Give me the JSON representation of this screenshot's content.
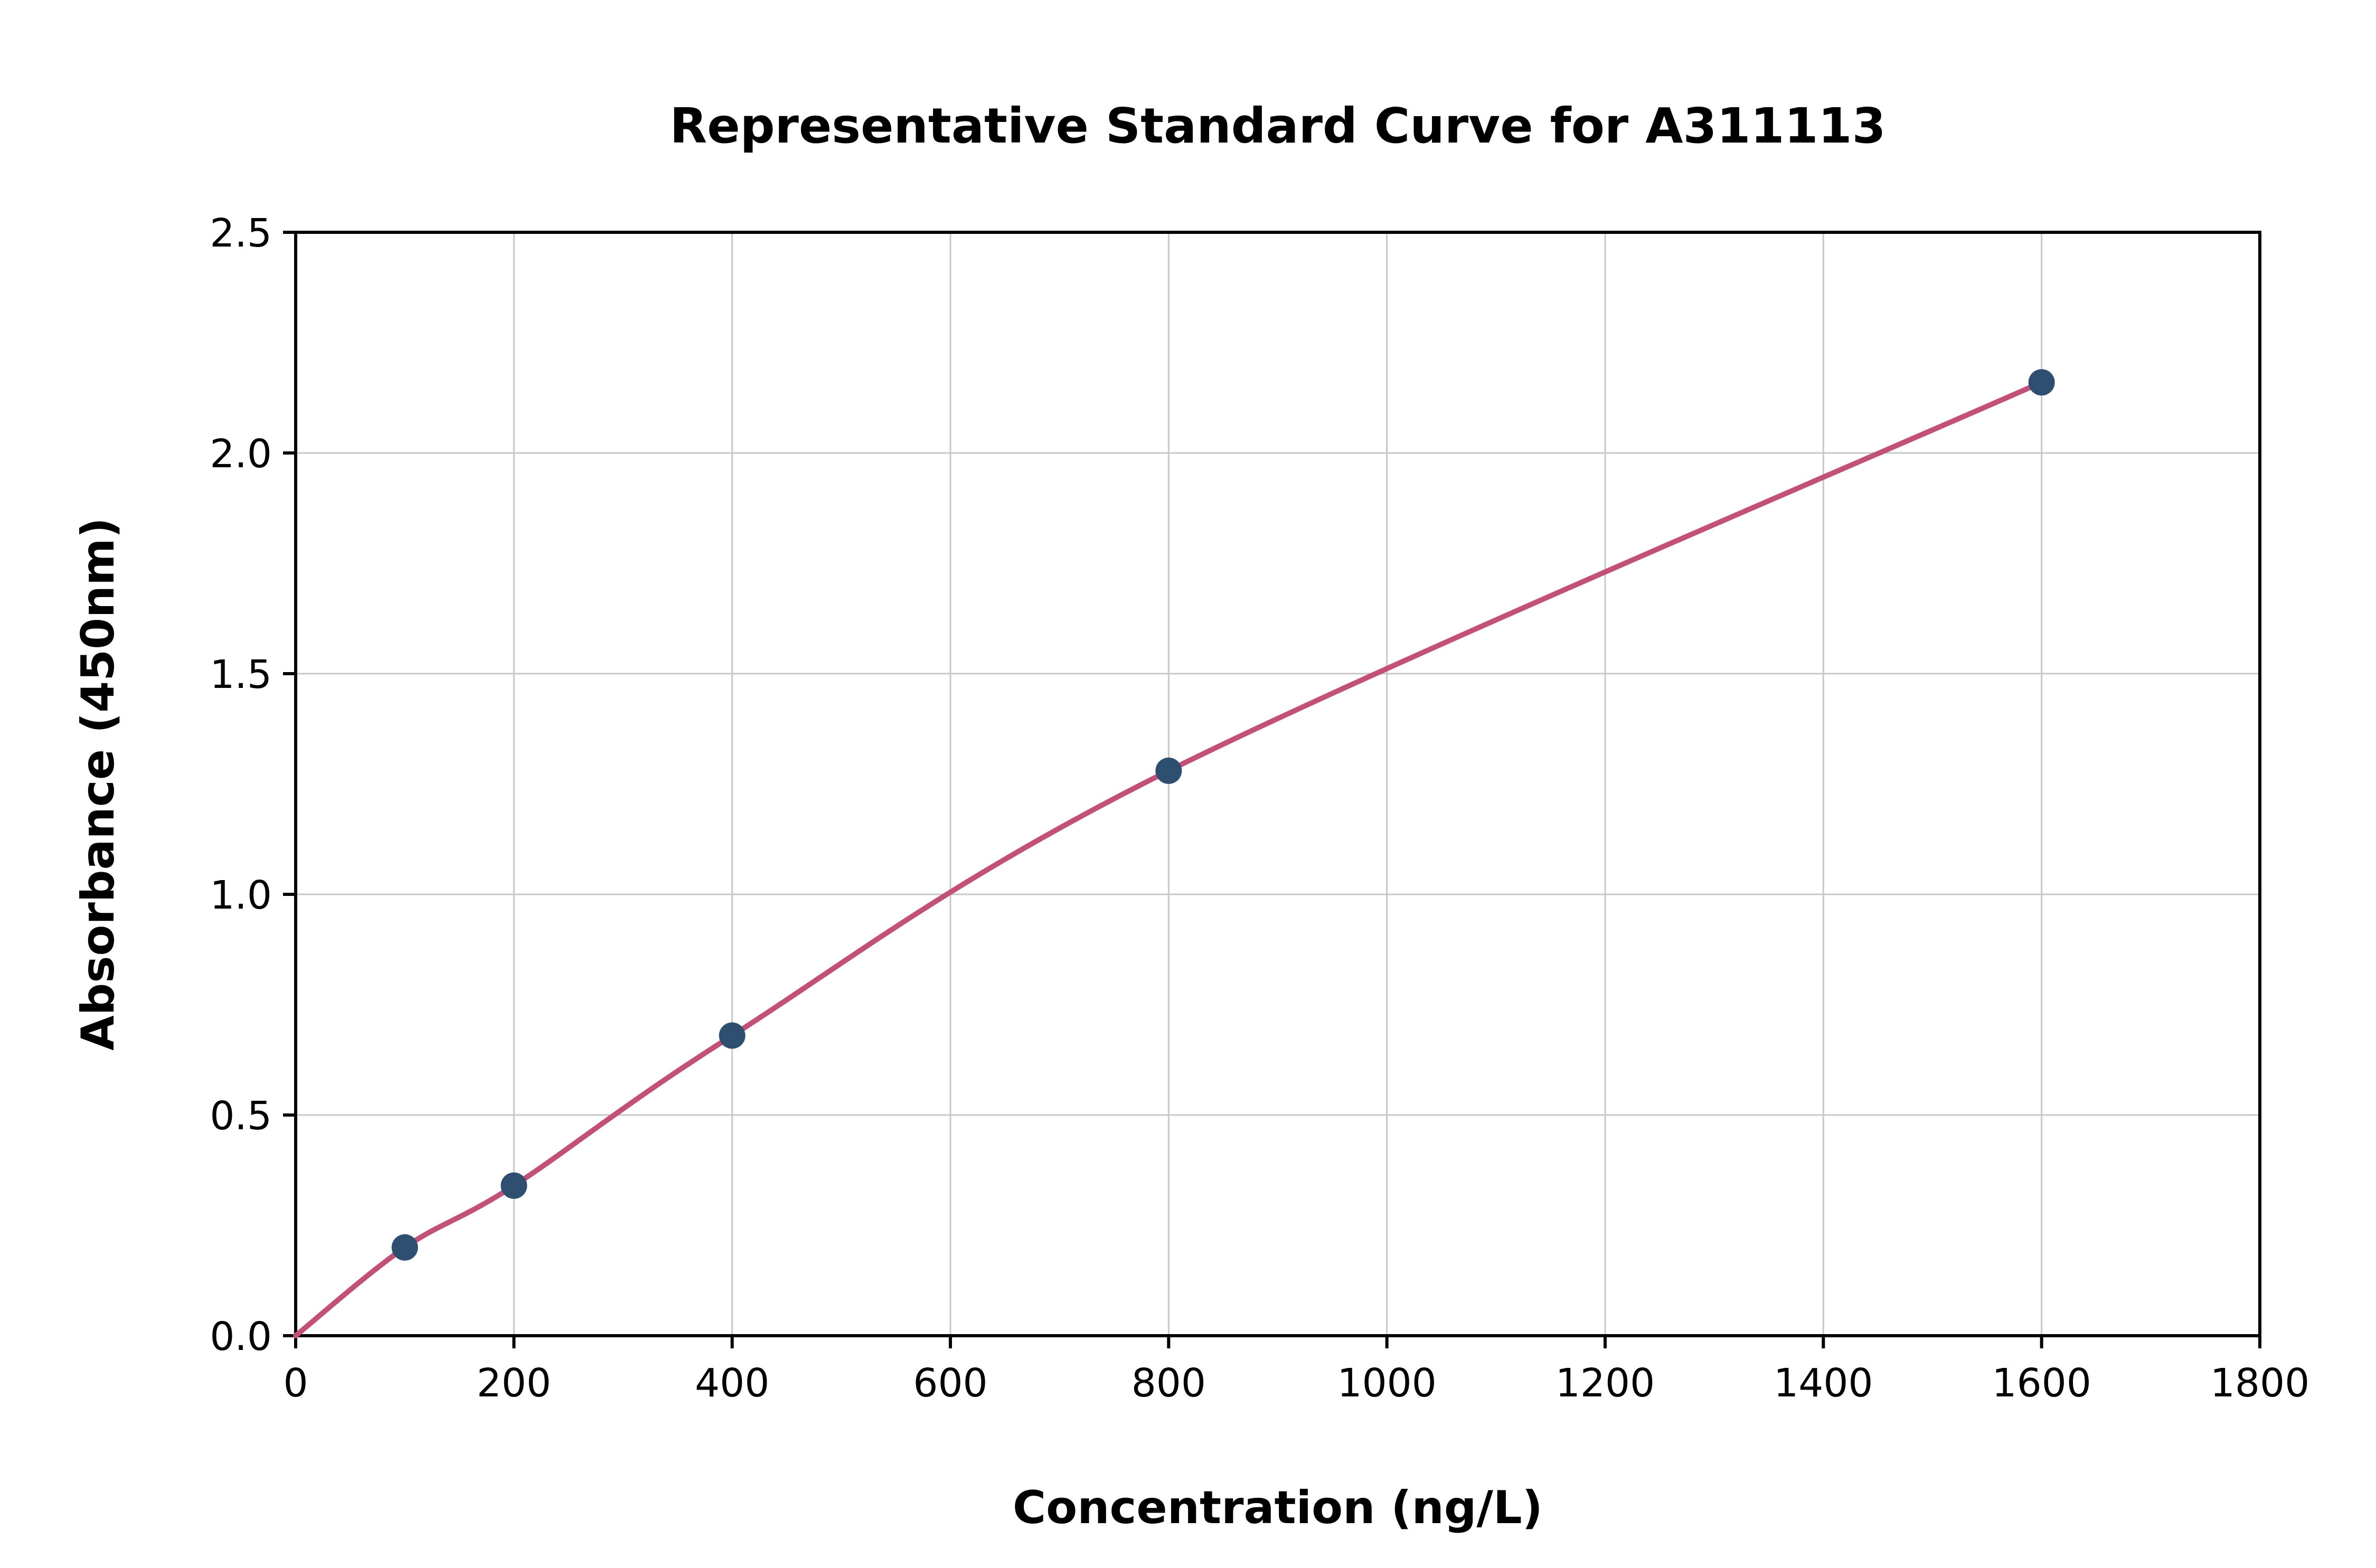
{
  "chart_data": {
    "type": "scatter",
    "title": "Representative Standard Curve for A311113",
    "xlabel": "Concentration (ng/L)",
    "ylabel": "Absorbance (450nm)",
    "xlim": [
      0,
      1800
    ],
    "ylim": [
      0,
      2.5
    ],
    "xticks": [
      0,
      200,
      400,
      600,
      800,
      1000,
      1200,
      1400,
      1600,
      1800
    ],
    "xtick_labels": [
      "0",
      "200",
      "400",
      "600",
      "800",
      "1000",
      "1200",
      "1400",
      "1600",
      "1800"
    ],
    "yticks": [
      0.0,
      0.5,
      1.0,
      1.5,
      2.0,
      2.5
    ],
    "ytick_labels": [
      "0.0",
      "0.5",
      "1.0",
      "1.5",
      "2.0",
      "2.5"
    ],
    "grid": true,
    "legend": "none",
    "points": {
      "x": [
        100,
        200,
        400,
        800,
        1600
      ],
      "y": [
        0.2,
        0.34,
        0.68,
        1.28,
        2.16
      ]
    },
    "curve_start": {
      "x": 0,
      "y": 0.0
    },
    "colors": {
      "line": "#c2517a",
      "point": "#2e4f6f",
      "grid": "#c8c8c8",
      "spine": "#000000",
      "background": "#ffffff"
    }
  }
}
